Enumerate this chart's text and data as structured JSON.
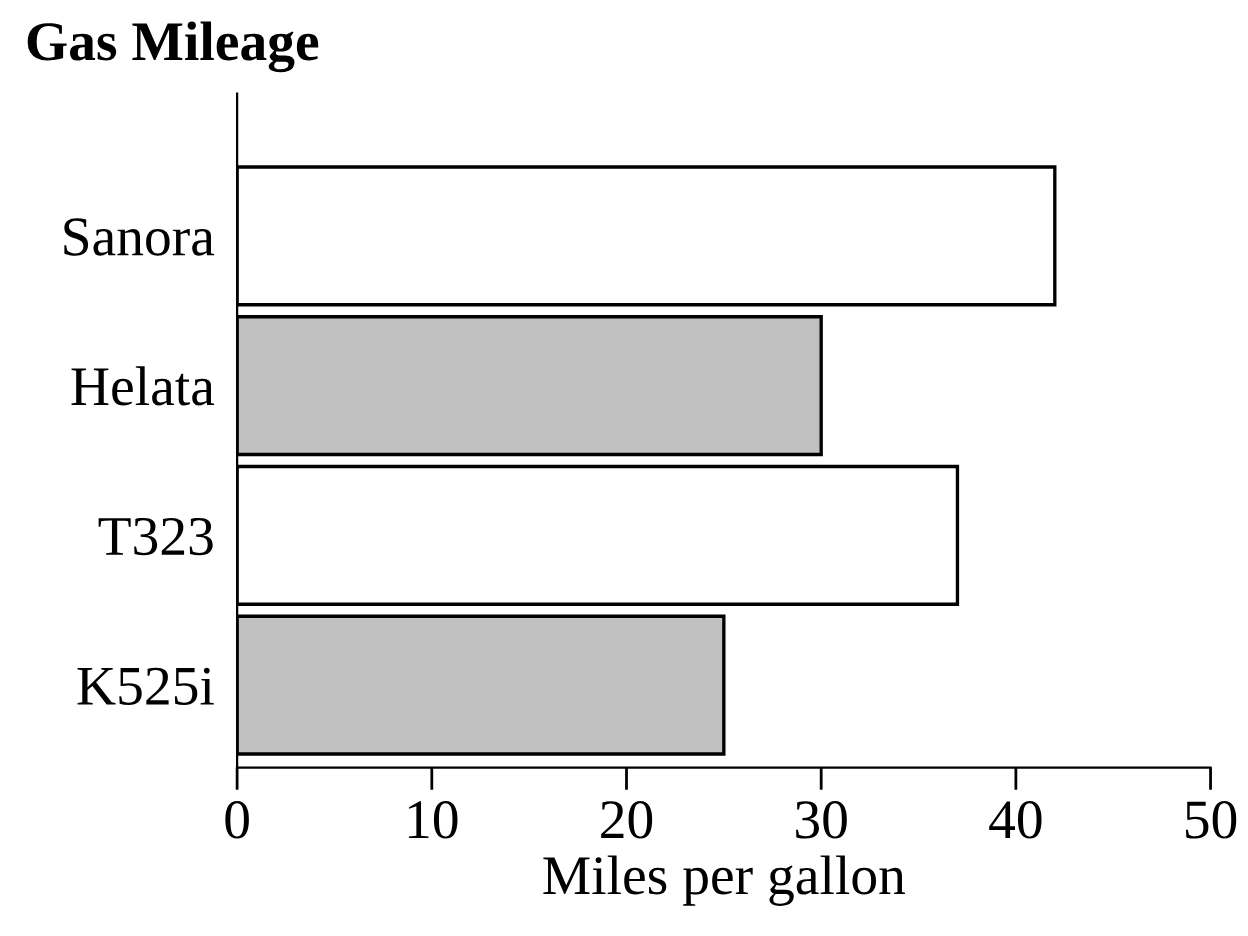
{
  "chart_data": {
    "type": "bar",
    "orientation": "horizontal",
    "title": "Gas Mileage",
    "xlabel": "Miles per gallon",
    "categories": [
      "Sanora",
      "Helata",
      "T323",
      "K525i"
    ],
    "values": [
      42,
      30,
      37,
      25
    ],
    "colors": [
      "#ffffff",
      "#c0c0c0",
      "#ffffff",
      "#c0c0c0"
    ],
    "xlim": [
      0,
      50
    ],
    "xticks": [
      0,
      10,
      20,
      30,
      40,
      50
    ],
    "grid": false,
    "legend": false
  }
}
